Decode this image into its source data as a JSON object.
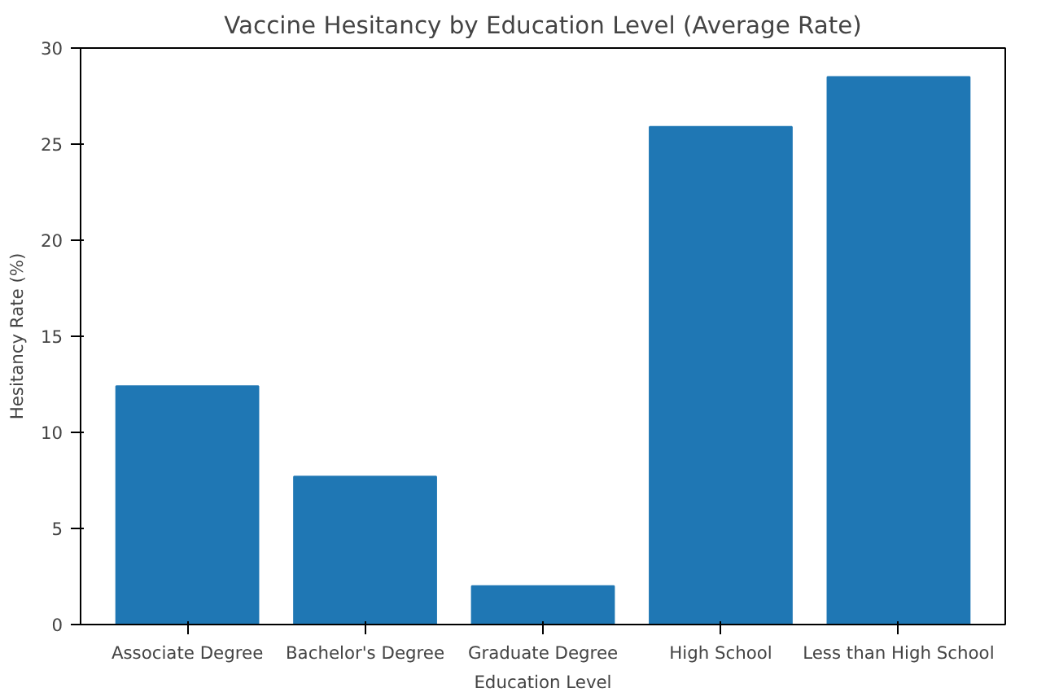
{
  "chart_data": {
    "type": "bar",
    "title": "Vaccine Hesitancy by Education Level (Average Rate)",
    "xlabel": "Education Level",
    "ylabel": "Hesitancy Rate (%)",
    "categories": [
      "Associate Degree",
      "Bachelor's Degree",
      "Graduate Degree",
      "High School",
      "Less than High School"
    ],
    "values": [
      12.4,
      7.7,
      2.0,
      25.9,
      28.5
    ],
    "color": "#1f77b4",
    "ylim": [
      0,
      30
    ],
    "yticks": [
      0,
      5,
      10,
      15,
      20,
      25,
      30
    ],
    "grid": false
  }
}
